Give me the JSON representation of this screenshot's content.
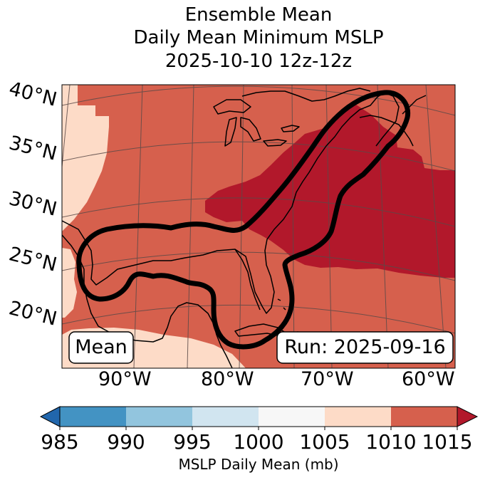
{
  "title": {
    "line1": "Ensemble Mean",
    "line2": "Daily Mean Minimum MSLP",
    "line3": "2025-10-10 12z-12z"
  },
  "map": {
    "latitude_labels": [
      "40°N",
      "35°N",
      "30°N",
      "25°N",
      "20°N"
    ],
    "longitude_labels": [
      "90°W",
      "80°W",
      "70°W",
      "60°W"
    ],
    "mean_box_label": "Mean",
    "run_box_label": "Run: 2025-09-16"
  },
  "colorbar": {
    "ticks": [
      "985",
      "990",
      "995",
      "1000",
      "1005",
      "1010",
      "1015"
    ],
    "label": "MSLP Daily Mean (mb)",
    "colors": {
      "below_985": "#2166ac",
      "985_990": "#4393c3",
      "990_995": "#92c5de",
      "995_1000": "#d1e5f0",
      "1000_1005": "#f7f7f7",
      "1005_1010": "#fddbc7",
      "1010_1015": "#d6604d",
      "above_1015": "#b2182b"
    }
  },
  "colors": {
    "contour_outline": "#000000",
    "coastline": "#000000",
    "gridline": "#5a4a48"
  }
}
